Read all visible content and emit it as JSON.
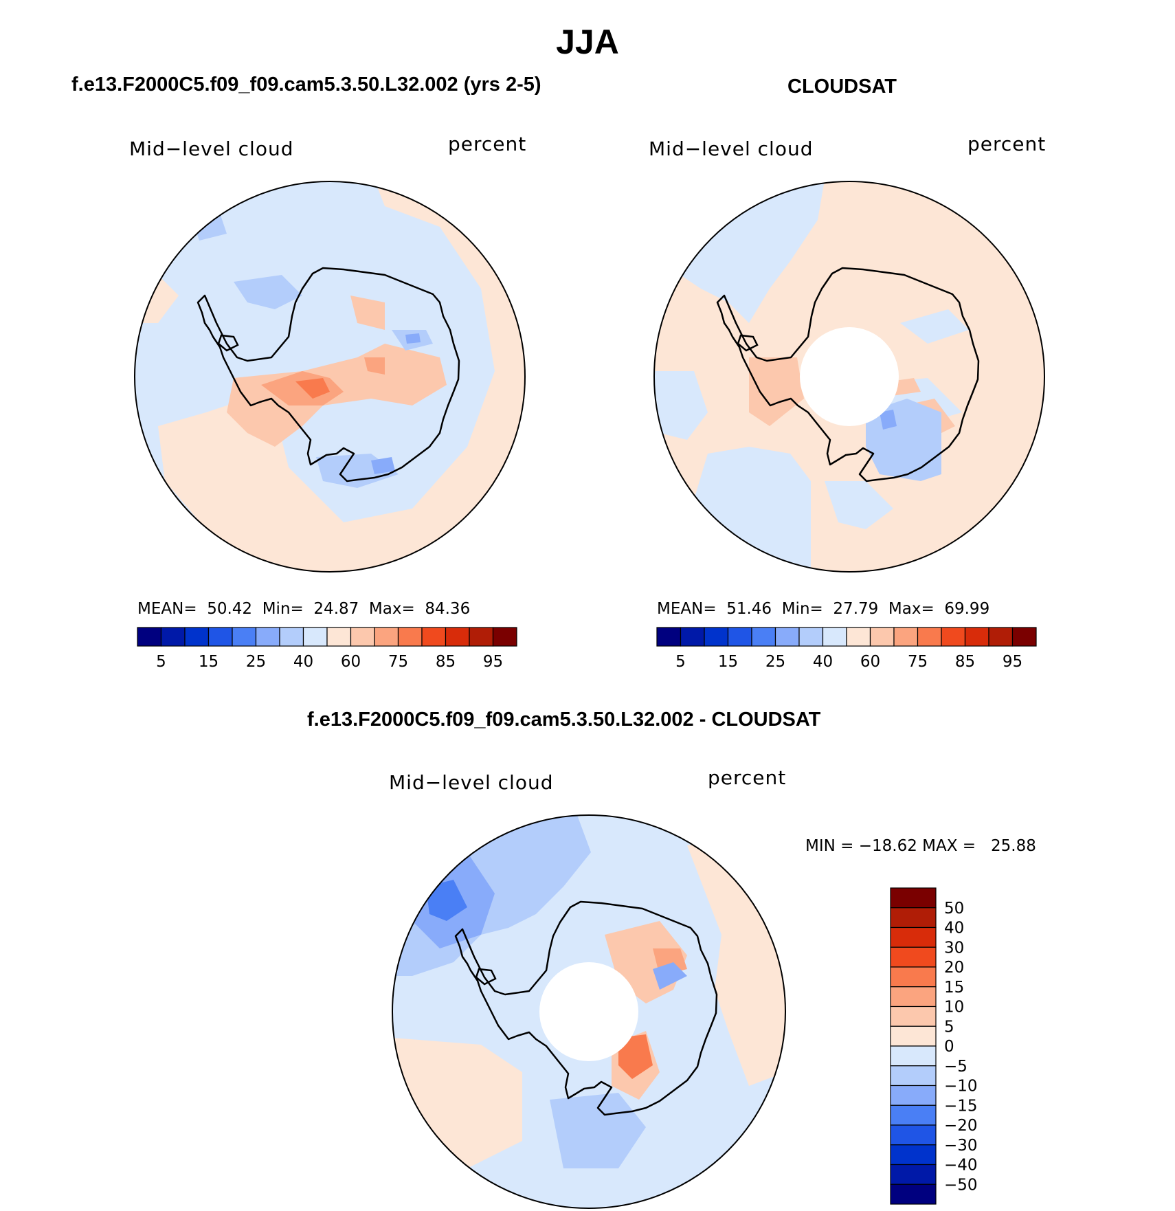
{
  "header": {
    "season": "JJA",
    "model_title": "f.e13.F2000C5.f09_f09.cam5.3.50.L32.002 (yrs 2-5)",
    "obs_title": "CLOUDSAT",
    "diff_title": "f.e13.F2000C5.f09_f09.cam5.3.50.L32.002 - CLOUDSAT"
  },
  "panels": {
    "model": {
      "variable": "Mid−level cloud",
      "units": "percent",
      "mean_label": "MEAN=",
      "mean": "50.42",
      "min_label": "Min=",
      "min": "24.87",
      "max_label": "Max=",
      "max": "84.36"
    },
    "obs": {
      "variable": "Mid−level cloud",
      "units": "percent",
      "mean_label": "MEAN=",
      "mean": "51.46",
      "min_label": "Min=",
      "min": "27.79",
      "max_label": "Max=",
      "max": "69.99"
    },
    "diff": {
      "variable": "Mid−level cloud",
      "units": "percent",
      "minmax_text": "MIN = −18.62 MAX =   25.88"
    }
  },
  "colors": {
    "abs_scale": [
      "#00007f",
      "#0019a8",
      "#0033cc",
      "#1f55e6",
      "#4a7ff5",
      "#88abfa",
      "#b3cdfb",
      "#d8e8fc",
      "#fde6d6",
      "#fcc8ad",
      "#fba47f",
      "#f97a4d",
      "#f04a1e",
      "#d82c0a",
      "#b01d06",
      "#7a0000"
    ],
    "diff_scale": [
      "#7a0000",
      "#b01d06",
      "#d82c0a",
      "#f04a1e",
      "#f97a4d",
      "#fba47f",
      "#fcc8ad",
      "#fde6d6",
      "#d8e8fc",
      "#b3cdfb",
      "#88abfa",
      "#4a7ff5",
      "#1f55e6",
      "#0033cc",
      "#0019a8",
      "#00007f"
    ]
  },
  "chart_data": [
    {
      "type": "heatmap",
      "projection": "south polar stereographic",
      "title": "f.e13.F2000C5.f09_f09.cam5.3.50.L32.002 (yrs 2-5)",
      "variable": "Mid-level cloud",
      "units": "percent",
      "mean": 50.42,
      "min": 24.87,
      "max": 84.36,
      "colorbar_levels": [
        5,
        10,
        15,
        20,
        25,
        30,
        40,
        50,
        60,
        70,
        75,
        80,
        85,
        90,
        95
      ],
      "colorbar_tick_labels": [
        "5",
        "15",
        "25",
        "40",
        "60",
        "75",
        "85",
        "95"
      ]
    },
    {
      "type": "heatmap",
      "projection": "south polar stereographic",
      "title": "CLOUDSAT",
      "variable": "Mid-level cloud",
      "units": "percent",
      "mean": 51.46,
      "min": 27.79,
      "max": 69.99,
      "colorbar_levels": [
        5,
        10,
        15,
        20,
        25,
        30,
        40,
        50,
        60,
        70,
        75,
        80,
        85,
        90,
        95
      ],
      "colorbar_tick_labels": [
        "5",
        "15",
        "25",
        "40",
        "60",
        "75",
        "85",
        "95"
      ]
    },
    {
      "type": "heatmap",
      "projection": "south polar stereographic",
      "title": "f.e13.F2000C5.f09_f09.cam5.3.50.L32.002 - CLOUDSAT",
      "variable": "Mid-level cloud",
      "units": "percent",
      "min": -18.62,
      "max": 25.88,
      "colorbar_levels": [
        50,
        40,
        30,
        20,
        15,
        10,
        5,
        0,
        -5,
        -10,
        -15,
        -20,
        -30,
        -40,
        -50
      ],
      "colorbar_tick_labels": [
        "50",
        "40",
        "30",
        "20",
        "15",
        "10",
        "5",
        "0",
        "−5",
        "−10",
        "−15",
        "−20",
        "−30",
        "−40",
        "−50"
      ]
    }
  ]
}
